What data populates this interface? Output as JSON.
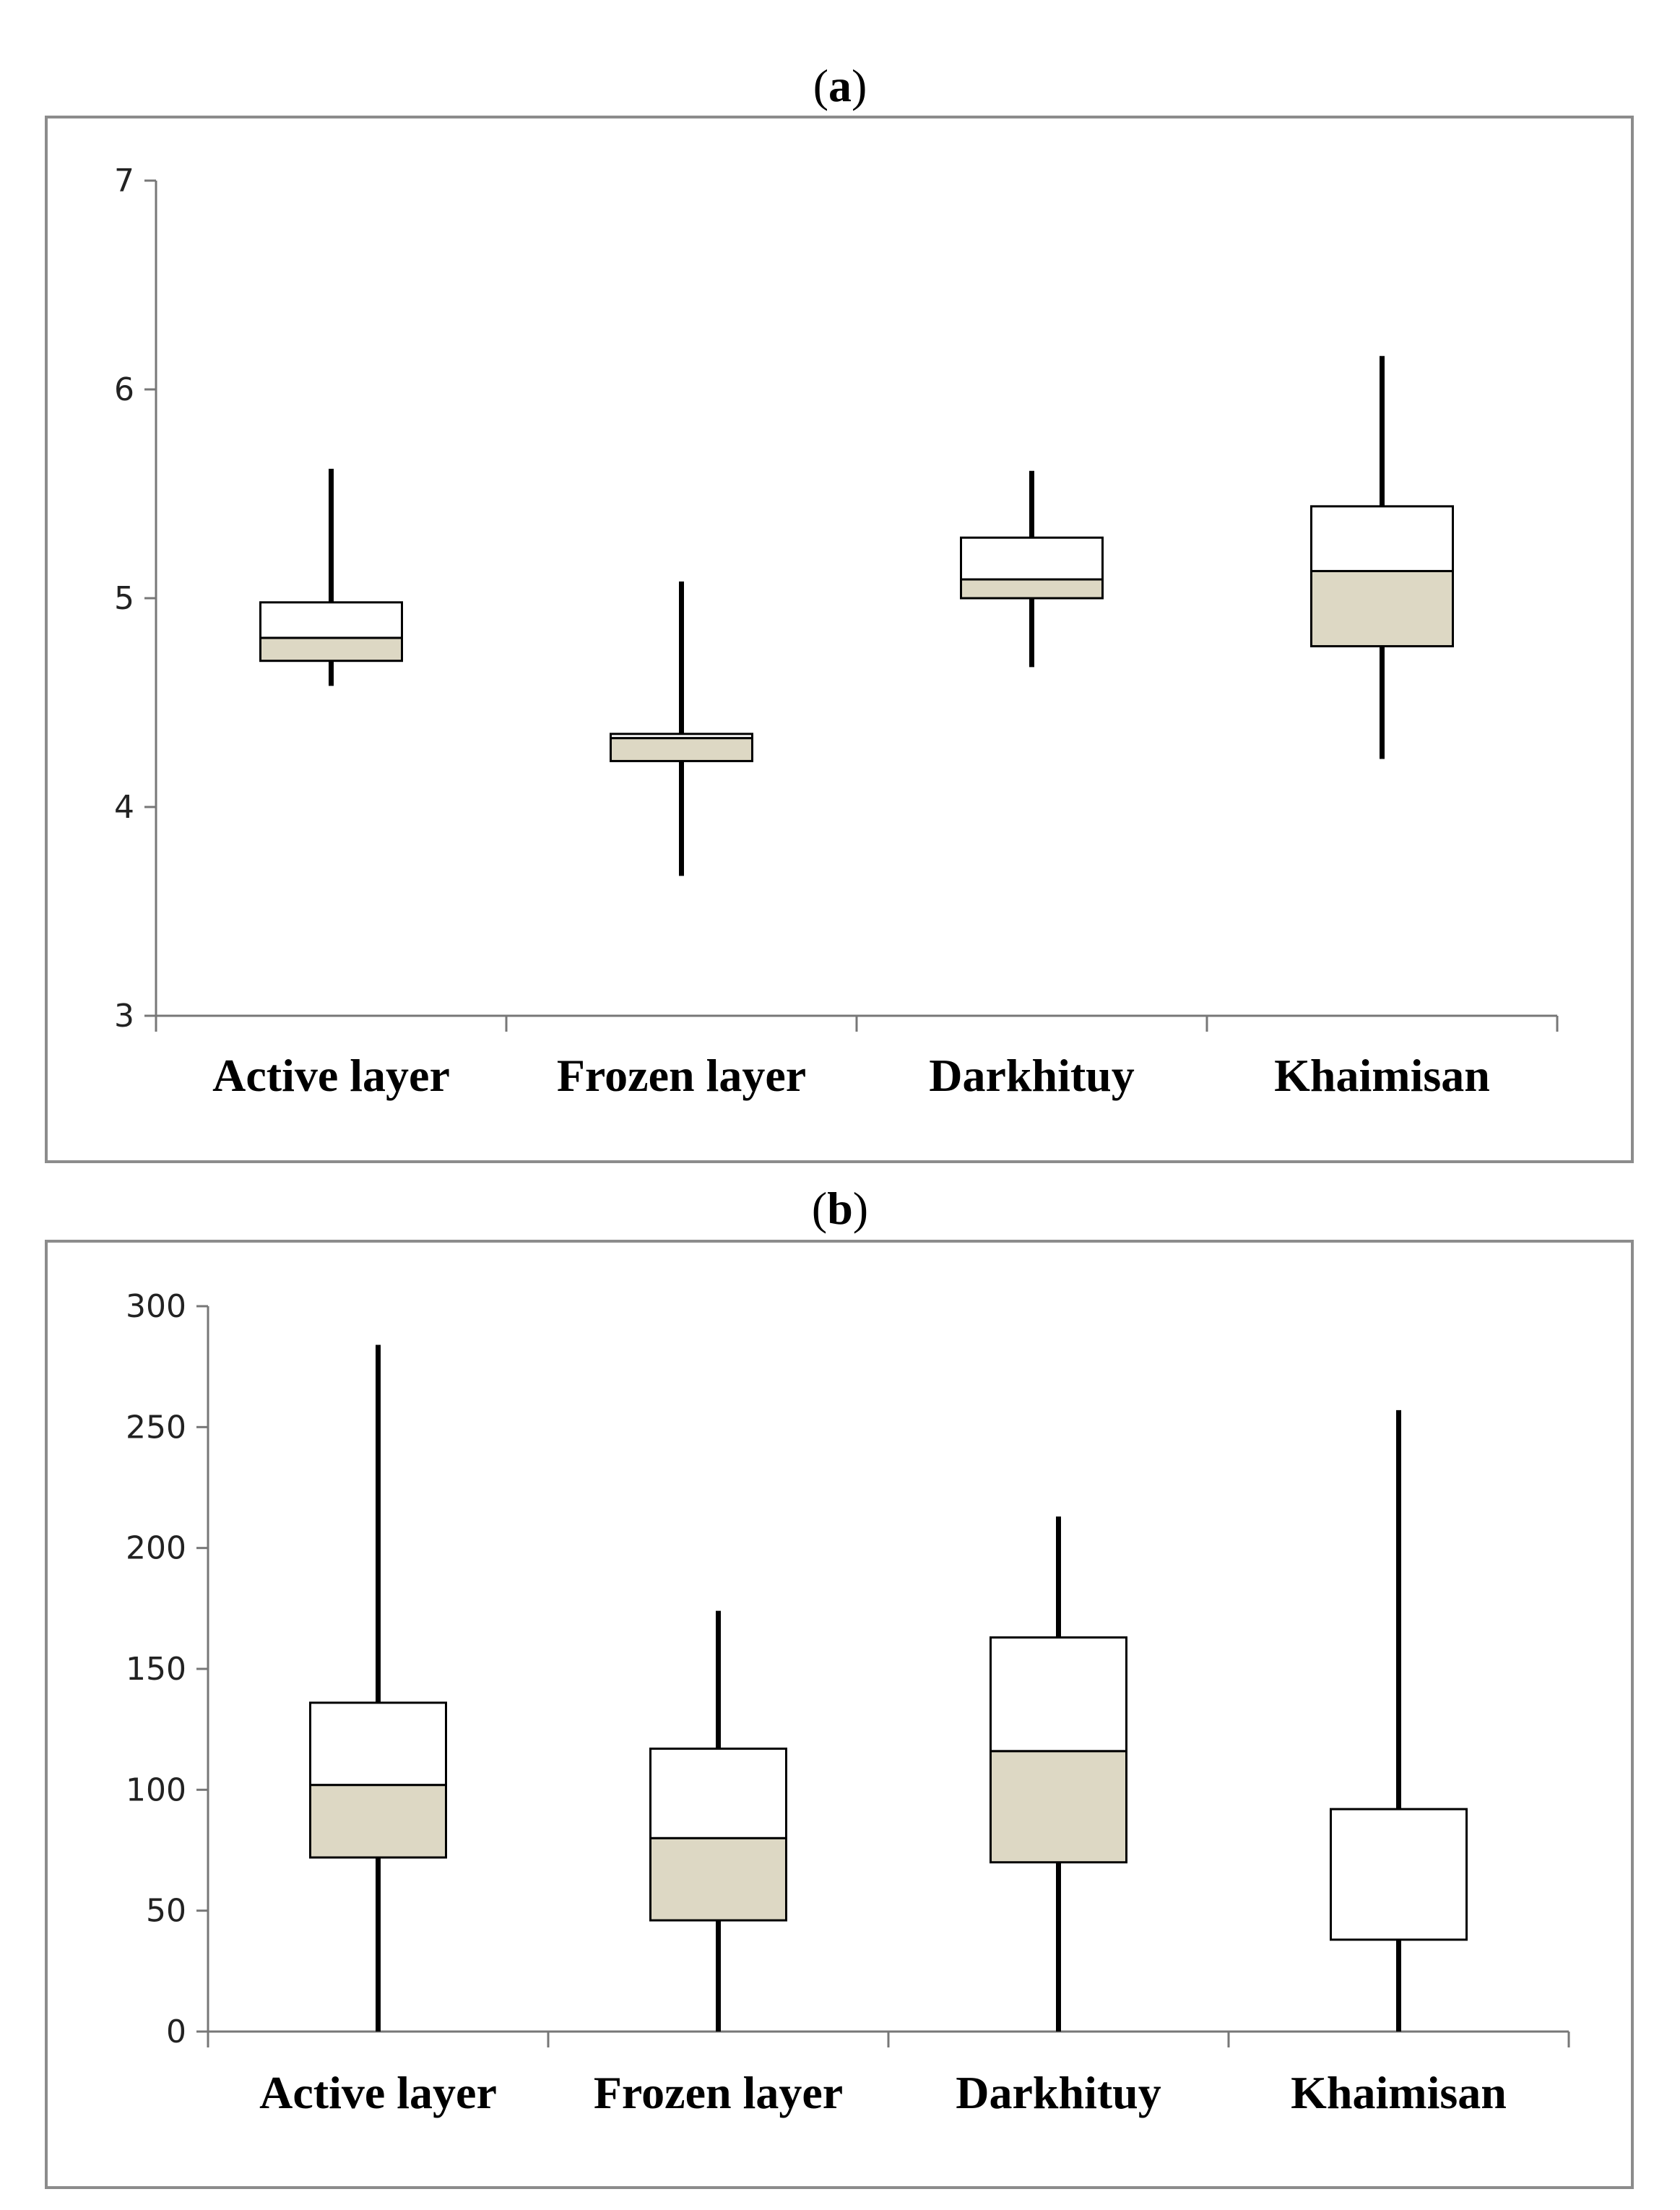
{
  "panels": [
    {
      "label_prefix": "(",
      "label_letter": "a",
      "label_suffix": ")"
    },
    {
      "label_prefix": "(",
      "label_letter": "b",
      "label_suffix": ")"
    }
  ],
  "colors": {
    "lower_box": "#ddd8c4",
    "upper_box": "#ffffff",
    "frame": "#8c8c8c",
    "ink": "#000000"
  },
  "chart_data": [
    {
      "type": "box",
      "categories": [
        "Active layer",
        "Frozen layer",
        "Darkhituy",
        "Khaimisan"
      ],
      "ylim": [
        3,
        7
      ],
      "yticks": [
        3,
        4,
        5,
        6,
        7
      ],
      "grid": false,
      "boxes": [
        {
          "min": 4.58,
          "q1": 4.7,
          "median": 4.81,
          "q3": 4.98,
          "max": 5.62
        },
        {
          "min": 3.67,
          "q1": 4.22,
          "median": 4.33,
          "q3": 4.35,
          "max": 5.08
        },
        {
          "min": 4.67,
          "q1": 5.0,
          "median": 5.09,
          "q3": 5.29,
          "max": 5.61
        },
        {
          "min": 4.23,
          "q1": 4.77,
          "median": 5.13,
          "q3": 5.44,
          "max": 6.16
        }
      ]
    },
    {
      "type": "box",
      "categories": [
        "Active layer",
        "Frozen layer",
        "Darkhituy",
        "Khaimisan"
      ],
      "ylim": [
        0,
        300
      ],
      "yticks": [
        0,
        50,
        100,
        150,
        200,
        250,
        300
      ],
      "grid": false,
      "boxes": [
        {
          "min": 0,
          "q1": 72,
          "median": 102,
          "q3": 136,
          "max": 284
        },
        {
          "min": 0,
          "q1": 46,
          "median": 80,
          "q3": 117,
          "max": 174
        },
        {
          "min": 0,
          "q1": 70,
          "median": 116,
          "q3": 163,
          "max": 213
        },
        {
          "min": 0,
          "q1": 38,
          "median": 38,
          "q3": 92,
          "max": 257
        }
      ]
    }
  ]
}
